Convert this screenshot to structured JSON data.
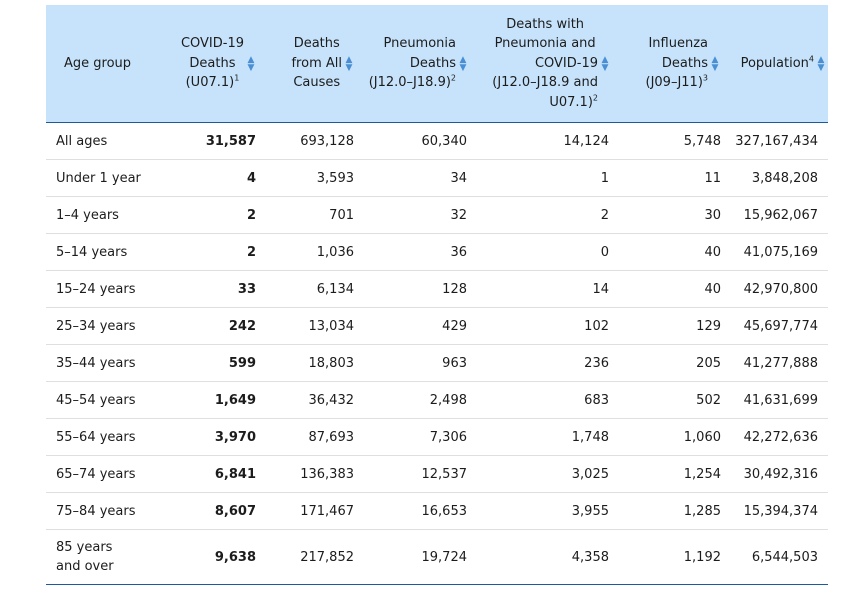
{
  "columns": [
    {
      "lines": [
        "Age group"
      ],
      "sup": ""
    },
    {
      "lines": [
        "COVID-19",
        "Deaths",
        "(U07.1)"
      ],
      "sup": "1"
    },
    {
      "lines": [
        "Deaths",
        "from All",
        "Causes"
      ],
      "sup": ""
    },
    {
      "lines": [
        "Pneumonia",
        "Deaths",
        "(J12.0–J18.9)"
      ],
      "sup": "2"
    },
    {
      "lines": [
        "Deaths with",
        "Pneumonia and",
        "COVID-19",
        "(J12.0–J18.9 and",
        "U07.1)"
      ],
      "sup": "2"
    },
    {
      "lines": [
        "Influenza",
        "Deaths",
        "(J09–J11)"
      ],
      "sup": "3"
    },
    {
      "lines": [
        "Population"
      ],
      "sup": "4"
    }
  ],
  "rows": [
    {
      "age": "All ages",
      "covid": "31,587",
      "all": "693,128",
      "pneumonia": "60,340",
      "pneu_covid": "14,124",
      "influenza": "5,748",
      "population": "327,167,434"
    },
    {
      "age": "Under 1 year",
      "covid": "4",
      "all": "3,593",
      "pneumonia": "34",
      "pneu_covid": "1",
      "influenza": "11",
      "population": "3,848,208"
    },
    {
      "age": "1–4 years",
      "covid": "2",
      "all": "701",
      "pneumonia": "32",
      "pneu_covid": "2",
      "influenza": "30",
      "population": "15,962,067"
    },
    {
      "age": "5–14 years",
      "covid": "2",
      "all": "1,036",
      "pneumonia": "36",
      "pneu_covid": "0",
      "influenza": "40",
      "population": "41,075,169"
    },
    {
      "age": "15–24 years",
      "covid": "33",
      "all": "6,134",
      "pneumonia": "128",
      "pneu_covid": "14",
      "influenza": "40",
      "population": "42,970,800"
    },
    {
      "age": "25–34 years",
      "covid": "242",
      "all": "13,034",
      "pneumonia": "429",
      "pneu_covid": "102",
      "influenza": "129",
      "population": "45,697,774"
    },
    {
      "age": "35–44 years",
      "covid": "599",
      "all": "18,803",
      "pneumonia": "963",
      "pneu_covid": "236",
      "influenza": "205",
      "population": "41,277,888"
    },
    {
      "age": "45–54 years",
      "covid": "1,649",
      "all": "36,432",
      "pneumonia": "2,498",
      "pneu_covid": "683",
      "influenza": "502",
      "population": "41,631,699"
    },
    {
      "age": "55–64 years",
      "covid": "3,970",
      "all": "87,693",
      "pneumonia": "7,306",
      "pneu_covid": "1,748",
      "influenza": "1,060",
      "population": "42,272,636"
    },
    {
      "age": "65–74 years",
      "covid": "6,841",
      "all": "136,383",
      "pneumonia": "12,537",
      "pneu_covid": "3,025",
      "influenza": "1,254",
      "population": "30,492,316"
    },
    {
      "age": "75–84 years",
      "covid": "8,607",
      "all": "171,467",
      "pneumonia": "16,653",
      "pneu_covid": "3,955",
      "influenza": "1,285",
      "population": "15,394,374"
    },
    {
      "age": "85 years and over",
      "covid": "9,638",
      "all": "217,852",
      "pneumonia": "19,724",
      "pneu_covid": "4,358",
      "influenza": "1,192",
      "population": "6,544,503"
    }
  ],
  "icons": {
    "sort": "sort-up-down-icon"
  },
  "colors": {
    "header_bg": "#c7e3fb",
    "accent": "#1d5a9c",
    "sort_icon": "#4a8fd4"
  }
}
